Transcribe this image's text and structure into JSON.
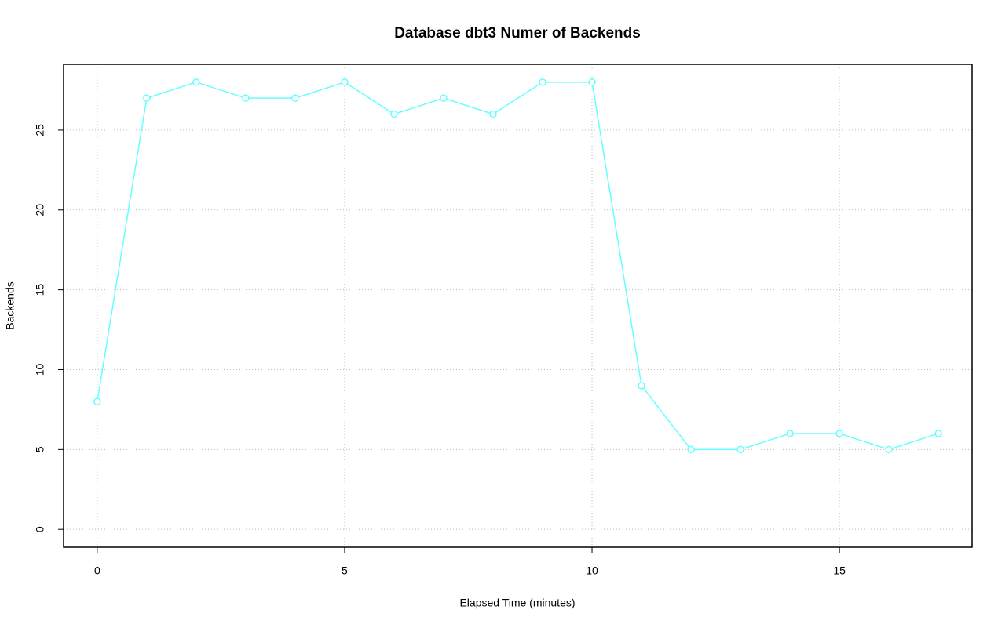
{
  "chart_data": {
    "type": "line",
    "title": "Database dbt3 Numer of Backends",
    "x_label": "Elapsed Time (minutes)",
    "y_label": "Backends",
    "x": [
      0,
      1,
      2,
      3,
      4,
      5,
      6,
      7,
      8,
      9,
      10,
      11,
      12,
      13,
      14,
      15,
      16,
      17
    ],
    "series": [
      {
        "name": "Backends",
        "color": "#66ffff",
        "values": [
          8,
          27,
          28,
          27,
          27,
          28,
          26,
          27,
          26,
          28,
          28,
          9,
          5,
          5,
          6,
          6,
          5,
          6
        ]
      }
    ],
    "xlim": [
      -0.68,
      17.68
    ],
    "xticks": [
      0,
      5,
      10,
      15
    ],
    "ylim": [
      -1.12,
      29.12
    ],
    "yticks": [
      0,
      5,
      10,
      15,
      20,
      25
    ],
    "grid": true
  }
}
